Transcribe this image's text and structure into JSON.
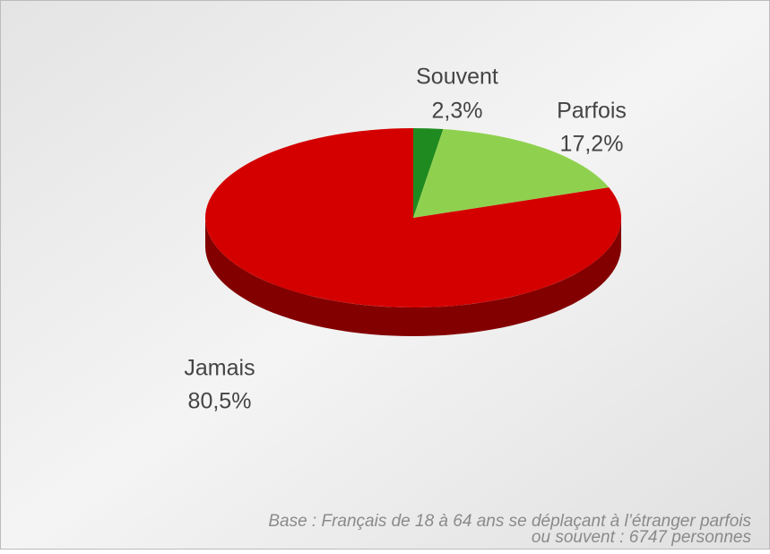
{
  "chart_data": {
    "type": "pie",
    "categories": [
      "Souvent",
      "Parfois",
      "Jamais"
    ],
    "values": [
      2.3,
      17.2,
      80.5
    ],
    "value_labels": [
      "2,3%",
      "17,2%",
      "80,5%"
    ],
    "colors": [
      "#1f8a1f",
      "#8fd14f",
      "#d40000"
    ],
    "footnote": [
      "Base : Français de 18 à 64 ans se déplaçant à l’étranger parfois",
      "ou souvent  : 6747 personnes"
    ]
  }
}
